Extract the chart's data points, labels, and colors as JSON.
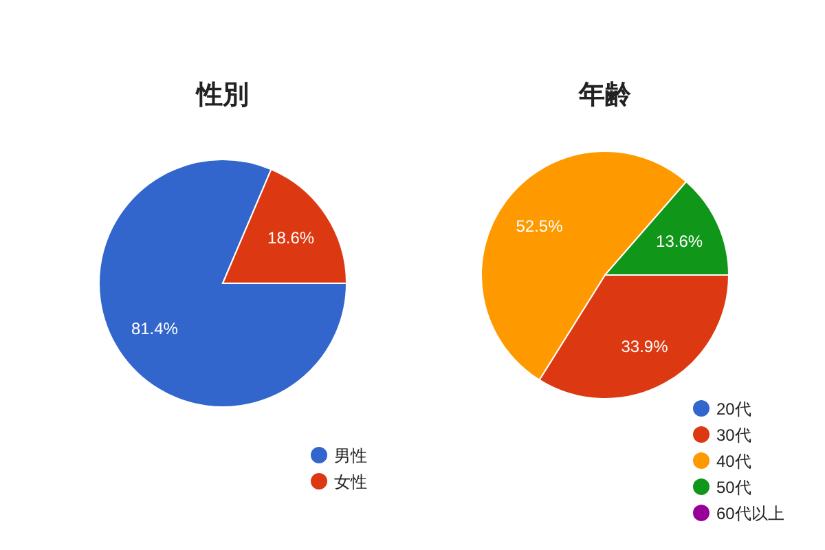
{
  "chart_data": [
    {
      "type": "pie",
      "title": "性別",
      "categories": [
        "男性",
        "女性"
      ],
      "values": [
        81.4,
        18.6
      ],
      "colors": [
        "#3366cc",
        "#dc3912"
      ],
      "value_labels": [
        "81.4%",
        "18.6%"
      ],
      "legend": "bottom right"
    },
    {
      "type": "pie",
      "title": "年齢",
      "categories": [
        "20代",
        "30代",
        "40代",
        "50代",
        "60代以上"
      ],
      "values": [
        0,
        33.9,
        52.5,
        13.6,
        0
      ],
      "colors": [
        "#3366cc",
        "#dc3912",
        "#ff9900",
        "#109618",
        "#990099"
      ],
      "value_labels": [
        null,
        "33.9%",
        "52.5%",
        "13.6%",
        null
      ],
      "legend": "bottom right"
    }
  ]
}
